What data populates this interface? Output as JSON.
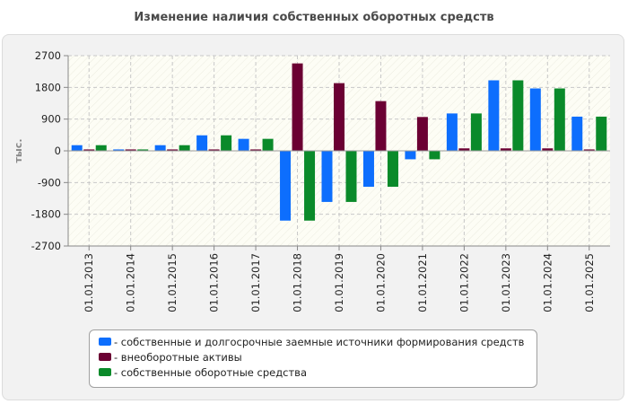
{
  "chart_data": {
    "type": "bar",
    "title": "Изменение наличия собственных оборотных средств",
    "ylabel": "тыс.",
    "xlabel": "",
    "ylim": [
      -2700,
      2700
    ],
    "yticks": [
      2700,
      1800,
      900,
      0,
      -900,
      -1800,
      -2700
    ],
    "categories": [
      "01.01.2013",
      "01.01.2014",
      "01.01.2015",
      "01.01.2016",
      "01.01.2017",
      "01.01.2018",
      "01.01.2019",
      "01.01.2020",
      "01.01.2021",
      "01.01.2022",
      "01.01.2023",
      "01.01.2024",
      "01.01.2025"
    ],
    "series": [
      {
        "name": "- собственные и долгосрочные заемные источники формирования средств",
        "color": "#0d6efd",
        "values": [
          160,
          40,
          160,
          440,
          340,
          -1980,
          -1450,
          -1020,
          -240,
          1060,
          2000,
          1770,
          970
        ]
      },
      {
        "name": "- внеоборотные активы",
        "color": "#6b0033",
        "values": [
          40,
          40,
          40,
          40,
          40,
          2480,
          1920,
          1410,
          960,
          70,
          70,
          70,
          40
        ]
      },
      {
        "name": "- собственные оборотные средства",
        "color": "#0a8a2a",
        "values": [
          160,
          40,
          160,
          440,
          340,
          -1980,
          -1450,
          -1020,
          -240,
          1060,
          2000,
          1770,
          970
        ]
      }
    ],
    "grid": true,
    "legend": "bottom"
  }
}
